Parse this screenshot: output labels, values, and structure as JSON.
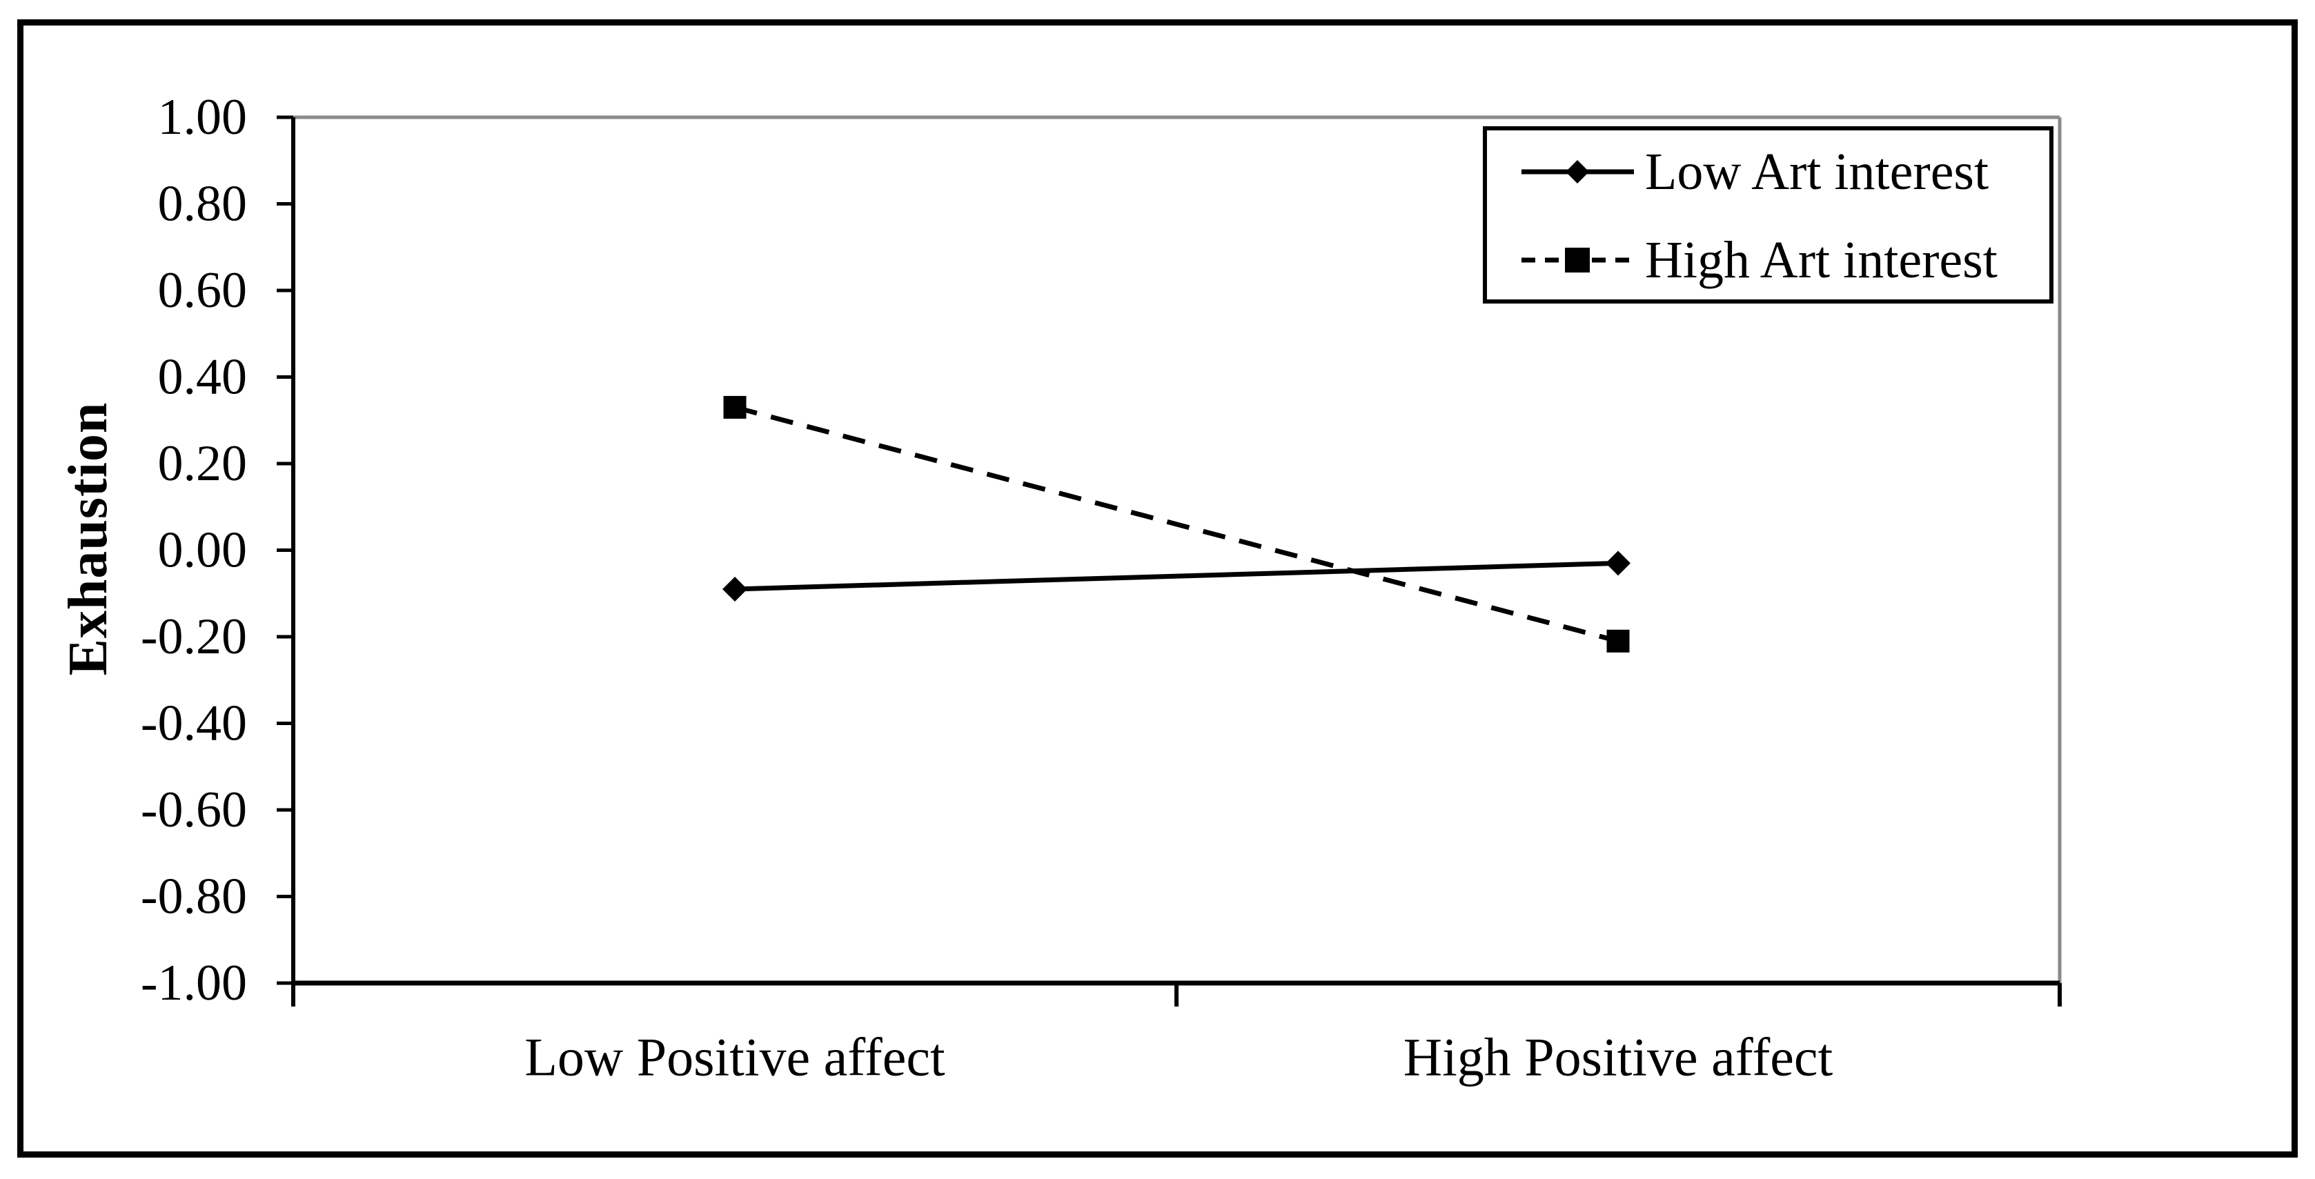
{
  "figure": {
    "background": "#ffffff",
    "border_color": "#000000"
  },
  "colors": {
    "axis": "#000000",
    "plot_border": "#8a8a8a",
    "text": "#000000",
    "series": "#000000",
    "legend_fill": "#ffffff",
    "legend_border": "#000000"
  },
  "chart_data": {
    "type": "line",
    "title": "",
    "categories": [
      "Low Positive affect",
      "High Positive affect"
    ],
    "series": [
      {
        "name": "Low Art interest",
        "values": [
          -0.09,
          -0.03
        ],
        "line_style": "solid",
        "marker": "diamond",
        "color": "#000000"
      },
      {
        "name": "High Art interest",
        "values": [
          0.33,
          -0.21
        ],
        "line_style": "dashed",
        "marker": "square",
        "color": "#000000"
      }
    ],
    "xlabel": "",
    "ylabel": "Exhaustion",
    "ylim": [
      -1.0,
      1.0
    ],
    "y_tick_step": 0.2,
    "y_tick_labels": [
      "1.00",
      "0.80",
      "0.60",
      "0.40",
      "0.20",
      "0.00",
      "-0.20",
      "-0.40",
      "-0.60",
      "-0.80",
      "-1.00"
    ],
    "grid": false,
    "legend_position": "top-right",
    "legend_entries": [
      "Low Art interest",
      "High Art interest"
    ]
  }
}
